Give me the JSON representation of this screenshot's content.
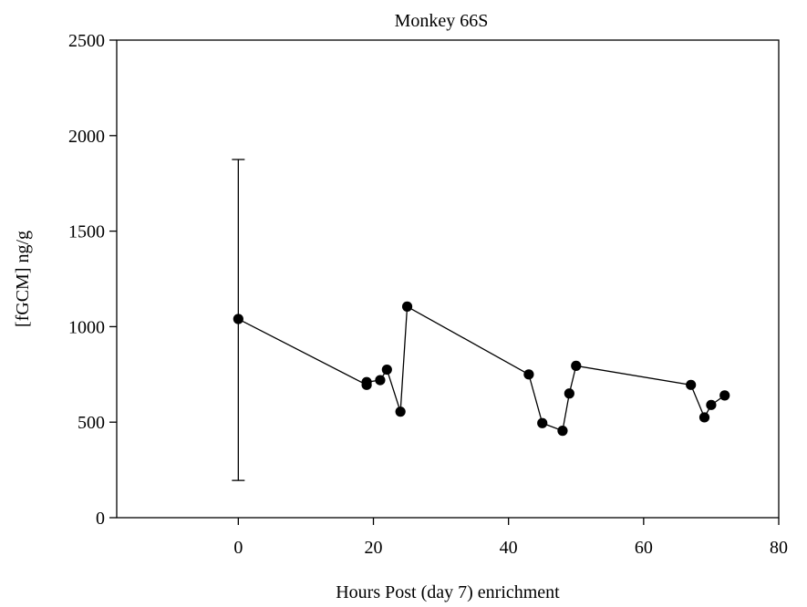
{
  "chart_data": {
    "type": "line",
    "title": "Monkey 66S",
    "xlabel": "Hours Post (day 7) enrichment",
    "ylabel": "[fGCM] ng/g",
    "xlim": [
      -18,
      80
    ],
    "ylim": [
      0,
      2500
    ],
    "xticks": [
      0,
      20,
      40,
      60,
      80
    ],
    "yticks": [
      0,
      500,
      1000,
      1500,
      2000,
      2500
    ],
    "grid": false,
    "series": [
      {
        "x": [
          0,
          19,
          19,
          21,
          22,
          24,
          25,
          43,
          45,
          48,
          49,
          50,
          67,
          69,
          70,
          72
        ],
        "y": [
          1040,
          695,
          710,
          720,
          775,
          555,
          1105,
          750,
          495,
          455,
          650,
          795,
          695,
          525,
          590,
          640
        ],
        "error_bars": [
          {
            "x": 0,
            "low": 195,
            "high": 1875
          }
        ]
      }
    ]
  }
}
